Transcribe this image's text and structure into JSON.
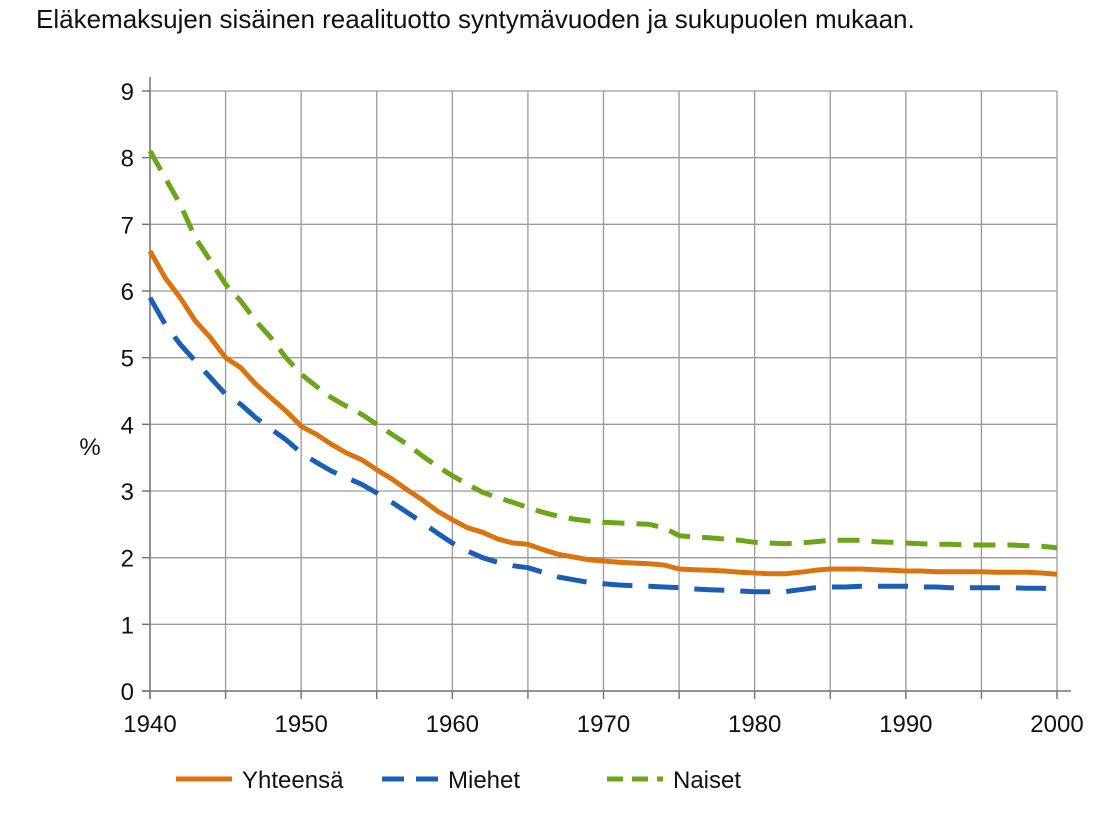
{
  "title": "Eläkemaksujen sisäinen reaalituotto syntymävuoden ja sukupuolen mukaan.",
  "chart_data": {
    "type": "line",
    "title": "Eläkemaksujen sisäinen reaalituotto syntymävuoden ja sukupuolen mukaan.",
    "xlabel": "",
    "ylabel": "%",
    "xlim": [
      1940,
      2000
    ],
    "ylim": [
      0,
      9
    ],
    "x_ticks": [
      "1940",
      "1950",
      "1960",
      "1970",
      "1980",
      "1990",
      "2000"
    ],
    "y_ticks": [
      "0",
      "1",
      "2",
      "3",
      "4",
      "5",
      "6",
      "7",
      "8",
      "9"
    ],
    "grid": true,
    "legend_position": "bottom",
    "series": [
      {
        "name": "Yhteensä",
        "color": "#D9740F",
        "dash": "solid",
        "x": [
          1940,
          1941,
          1942,
          1943,
          1944,
          1945,
          1946,
          1947,
          1948,
          1949,
          1950,
          1951,
          1952,
          1953,
          1954,
          1955,
          1956,
          1957,
          1958,
          1959,
          1960,
          1961,
          1962,
          1963,
          1964,
          1965,
          1966,
          1967,
          1968,
          1969,
          1970,
          1971,
          1972,
          1973,
          1974,
          1975,
          1976,
          1977,
          1978,
          1979,
          1980,
          1981,
          1982,
          1983,
          1984,
          1985,
          1986,
          1987,
          1988,
          1989,
          1990,
          1991,
          1992,
          1993,
          1994,
          1995,
          1996,
          1997,
          1998,
          1999,
          2000
        ],
        "values": [
          6.6,
          6.2,
          5.9,
          5.55,
          5.3,
          5.0,
          4.85,
          4.6,
          4.4,
          4.2,
          3.97,
          3.85,
          3.7,
          3.57,
          3.47,
          3.32,
          3.18,
          3.02,
          2.87,
          2.7,
          2.57,
          2.45,
          2.38,
          2.28,
          2.22,
          2.2,
          2.12,
          2.05,
          2.01,
          1.97,
          1.95,
          1.93,
          1.92,
          1.91,
          1.89,
          1.83,
          1.82,
          1.81,
          1.8,
          1.78,
          1.77,
          1.76,
          1.76,
          1.78,
          1.81,
          1.83,
          1.83,
          1.83,
          1.82,
          1.81,
          1.8,
          1.8,
          1.79,
          1.79,
          1.79,
          1.79,
          1.78,
          1.78,
          1.78,
          1.77,
          1.75
        ]
      },
      {
        "name": "Miehet",
        "color": "#1A5FB4",
        "dash": "long-dash",
        "x": [
          1940,
          1941,
          1942,
          1943,
          1944,
          1945,
          1946,
          1947,
          1948,
          1949,
          1950,
          1951,
          1952,
          1953,
          1954,
          1955,
          1956,
          1957,
          1958,
          1959,
          1960,
          1961,
          1962,
          1963,
          1964,
          1965,
          1966,
          1967,
          1968,
          1969,
          1970,
          1971,
          1972,
          1973,
          1974,
          1975,
          1976,
          1977,
          1978,
          1979,
          1980,
          1981,
          1982,
          1983,
          1984,
          1985,
          1986,
          1987,
          1988,
          1989,
          1990,
          1991,
          1992,
          1993,
          1994,
          1995,
          1996,
          1997,
          1998,
          1999,
          2000
        ],
        "values": [
          5.9,
          5.5,
          5.2,
          4.95,
          4.7,
          4.45,
          4.3,
          4.1,
          3.93,
          3.77,
          3.57,
          3.43,
          3.3,
          3.2,
          3.1,
          2.97,
          2.83,
          2.68,
          2.53,
          2.37,
          2.22,
          2.1,
          2.0,
          1.93,
          1.88,
          1.85,
          1.78,
          1.71,
          1.67,
          1.63,
          1.61,
          1.59,
          1.58,
          1.57,
          1.56,
          1.55,
          1.53,
          1.52,
          1.51,
          1.5,
          1.49,
          1.49,
          1.49,
          1.52,
          1.55,
          1.56,
          1.56,
          1.57,
          1.57,
          1.57,
          1.57,
          1.56,
          1.56,
          1.55,
          1.55,
          1.55,
          1.55,
          1.55,
          1.54,
          1.54,
          1.53
        ]
      },
      {
        "name": "Naiset",
        "color": "#6AA617",
        "dash": "dash",
        "x": [
          1940,
          1941,
          1942,
          1943,
          1944,
          1945,
          1946,
          1947,
          1948,
          1949,
          1950,
          1951,
          1952,
          1953,
          1954,
          1955,
          1956,
          1957,
          1958,
          1959,
          1960,
          1961,
          1962,
          1963,
          1964,
          1965,
          1966,
          1967,
          1968,
          1969,
          1970,
          1971,
          1972,
          1973,
          1974,
          1975,
          1976,
          1977,
          1978,
          1979,
          1980,
          1981,
          1982,
          1983,
          1984,
          1985,
          1986,
          1987,
          1988,
          1989,
          1990,
          1991,
          1992,
          1993,
          1994,
          1995,
          1996,
          1997,
          1998,
          1999,
          2000
        ],
        "values": [
          8.1,
          7.7,
          7.3,
          6.8,
          6.45,
          6.1,
          5.85,
          5.55,
          5.3,
          5.0,
          4.75,
          4.57,
          4.4,
          4.27,
          4.15,
          4.0,
          3.85,
          3.7,
          3.53,
          3.37,
          3.23,
          3.1,
          2.98,
          2.9,
          2.83,
          2.75,
          2.68,
          2.62,
          2.58,
          2.55,
          2.53,
          2.52,
          2.51,
          2.5,
          2.45,
          2.33,
          2.31,
          2.3,
          2.28,
          2.26,
          2.23,
          2.22,
          2.21,
          2.22,
          2.24,
          2.26,
          2.26,
          2.26,
          2.24,
          2.23,
          2.22,
          2.21,
          2.2,
          2.2,
          2.19,
          2.19,
          2.19,
          2.19,
          2.18,
          2.17,
          2.15
        ]
      }
    ]
  }
}
